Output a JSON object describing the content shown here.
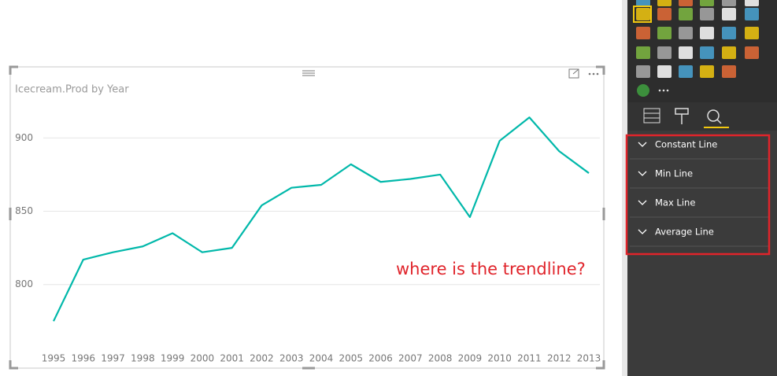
{
  "chart_data": {
    "type": "line",
    "title": "Icecream.Prod by Year",
    "categories": [
      "1995",
      "1996",
      "1997",
      "1998",
      "1999",
      "2000",
      "2001",
      "2002",
      "2003",
      "2004",
      "2005",
      "2006",
      "2007",
      "2008",
      "2009",
      "2010",
      "2011",
      "2012",
      "2013"
    ],
    "values": [
      775,
      817,
      822,
      826,
      835,
      822,
      825,
      854,
      866,
      868,
      882,
      870,
      872,
      875,
      846,
      898,
      914,
      891,
      876
    ],
    "color": "#01b8aa",
    "ylim": [
      758,
      927
    ],
    "yticks": [
      800,
      850,
      900
    ],
    "grid": true
  },
  "annotation": "where is the trendline?",
  "analytics_pane": {
    "sections": [
      "Constant Line",
      "Min Line",
      "Max Line",
      "Average Line"
    ]
  }
}
